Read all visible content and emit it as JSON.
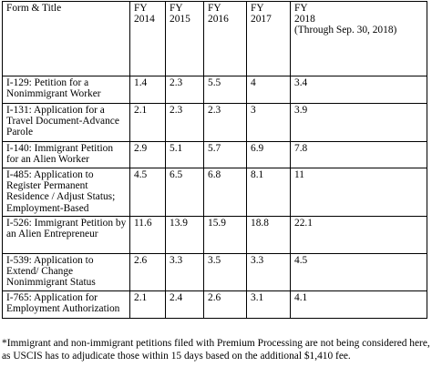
{
  "table": {
    "header": {
      "form_title": "Form & Title",
      "years": [
        {
          "label": "FY",
          "year": "2014"
        },
        {
          "label": "FY",
          "year": "2015"
        },
        {
          "label": "FY",
          "year": "2016"
        },
        {
          "label": "FY",
          "year": "2017"
        },
        {
          "label": "FY",
          "year": "2018",
          "note": "(Through Sep. 30, 2018)"
        }
      ]
    },
    "rows": [
      {
        "form": "I-129: Petition for a Nonimmigrant Worker",
        "values": [
          "1.4",
          "2.3",
          "5.5",
          "4",
          "3.4"
        ]
      },
      {
        "form": "I-131: Application for a Travel Document-Advance Parole",
        "values": [
          "2.1",
          "2.3",
          "2.3",
          "3",
          "3.9"
        ]
      },
      {
        "form": "I-140: Immigrant Petition for an Alien Worker",
        "values": [
          "2.9",
          "5.1",
          "5.7",
          "6.9",
          "7.8"
        ]
      },
      {
        "form": "I-485: Application to Register Permanent Residence / Adjust Status; Employment-Based",
        "values": [
          "4.5",
          "6.5",
          "6.8",
          "8.1",
          "11"
        ]
      },
      {
        "form": "I-526: Immigrant Petition by an Alien Entrepreneur",
        "values": [
          "11.6",
          "13.9",
          "15.9",
          "18.8",
          "22.1"
        ]
      },
      {
        "form": "I-539: Application to Extend/ Change Nonimmigrant Status",
        "values": [
          "2.6",
          "3.3",
          "3.5",
          "3.3",
          "4.5"
        ]
      },
      {
        "form": "I-765: Application for Employment Authorization",
        "values": [
          "2.1",
          "2.4",
          "2.6",
          "3.1",
          "4.1"
        ]
      }
    ]
  },
  "footnote": "*Immigrant and non-immigrant petitions filed with Premium Processing are not being considered here, as USCIS has to adjudicate those within 15 days based on the additional $1,410 fee."
}
